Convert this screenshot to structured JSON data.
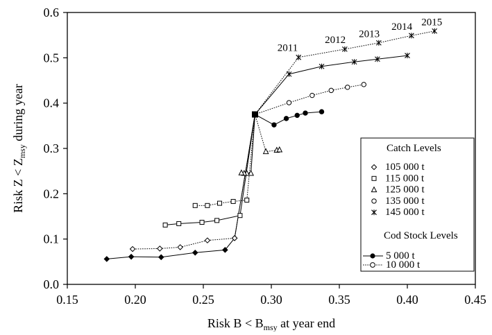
{
  "chart_data": {
    "type": "line",
    "xlabel": "Risk B < B",
    "xlabel_sub": "msy",
    "xlabel_tail": " at year end",
    "ylabel": "Risk Z < Z",
    "ylabel_sub": "msy",
    "ylabel_tail": " during year",
    "xlim": [
      0.15,
      0.45
    ],
    "ylim": [
      0.0,
      0.6
    ],
    "xticks": [
      "0.15",
      "0.20",
      "0.25",
      "0.30",
      "0.35",
      "0.40",
      "0.45"
    ],
    "yticks": [
      "0.0",
      "0.1",
      "0.2",
      "0.3",
      "0.4",
      "0.5",
      "0.6"
    ],
    "grid": false,
    "legend": {
      "position": "right",
      "catch_title": "Catch Levels",
      "catch_entries": [
        {
          "marker": "diamond",
          "label": "105 000 t"
        },
        {
          "marker": "square",
          "label": "115 000 t"
        },
        {
          "marker": "triangle",
          "label": "125 000 t"
        },
        {
          "marker": "circle",
          "label": "135 000 t"
        },
        {
          "marker": "star",
          "label": "145 000 t"
        }
      ],
      "cod_title": "Cod Stock Levels",
      "cod_entries": [
        {
          "style": "solid",
          "label": "5 000 t"
        },
        {
          "style": "dotted",
          "label": "10 000 t"
        }
      ]
    },
    "annotations": [
      {
        "text": "2011",
        "x": 0.312,
        "y": 0.515
      },
      {
        "text": "2012",
        "x": 0.347,
        "y": 0.533
      },
      {
        "text": "2013",
        "x": 0.372,
        "y": 0.546
      },
      {
        "text": "2014",
        "x": 0.396,
        "y": 0.562
      },
      {
        "text": "2015",
        "x": 0.418,
        "y": 0.572
      }
    ],
    "series": [
      {
        "catch": "105 000 t",
        "cod": "5 000 t",
        "marker": "diamond",
        "style": "solid",
        "points": [
          [
            0.288,
            0.375
          ],
          [
            0.273,
            0.102
          ],
          [
            0.266,
            0.076
          ],
          [
            0.244,
            0.07
          ],
          [
            0.219,
            0.06
          ],
          [
            0.197,
            0.061
          ],
          [
            0.179,
            0.056
          ]
        ]
      },
      {
        "catch": "105 000 t",
        "cod": "10 000 t",
        "marker": "diamond",
        "style": "dotted",
        "points": [
          [
            0.288,
            0.375
          ],
          [
            0.273,
            0.102
          ],
          [
            0.253,
            0.097
          ],
          [
            0.233,
            0.082
          ],
          [
            0.218,
            0.079
          ],
          [
            0.198,
            0.078
          ]
        ]
      },
      {
        "catch": "115 000 t",
        "cod": "5 000 t",
        "marker": "square",
        "style": "solid",
        "points": [
          [
            0.288,
            0.375
          ],
          [
            0.277,
            0.152
          ],
          [
            0.26,
            0.141
          ],
          [
            0.249,
            0.137
          ],
          [
            0.232,
            0.134
          ],
          [
            0.222,
            0.131
          ]
        ]
      },
      {
        "catch": "115 000 t",
        "cod": "10 000 t",
        "marker": "square",
        "style": "dotted",
        "points": [
          [
            0.288,
            0.375
          ],
          [
            0.282,
            0.186
          ],
          [
            0.272,
            0.183
          ],
          [
            0.262,
            0.179
          ],
          [
            0.253,
            0.174
          ],
          [
            0.244,
            0.174
          ]
        ]
      },
      {
        "catch": "125 000 t",
        "cod": "5 000 t",
        "marker": "triangle",
        "style": "solid",
        "points": [
          [
            0.288,
            0.375
          ],
          [
            0.285,
            0.245
          ],
          [
            0.282,
            0.245
          ],
          [
            0.28,
            0.245
          ],
          [
            0.278,
            0.246
          ]
        ]
      },
      {
        "catch": "125 000 t",
        "cod": "10 000 t",
        "marker": "triangle",
        "style": "dotted",
        "points": [
          [
            0.288,
            0.375
          ],
          [
            0.296,
            0.293
          ],
          [
            0.304,
            0.296
          ],
          [
            0.306,
            0.297
          ]
        ]
      },
      {
        "catch": "135 000 t",
        "cod": "5 000 t",
        "marker": "circle",
        "style": "solid",
        "points": [
          [
            0.288,
            0.375
          ],
          [
            0.302,
            0.352
          ],
          [
            0.311,
            0.366
          ],
          [
            0.319,
            0.373
          ],
          [
            0.325,
            0.378
          ],
          [
            0.337,
            0.381
          ]
        ]
      },
      {
        "catch": "135 000 t",
        "cod": "10 000 t",
        "marker": "circle",
        "style": "dotted",
        "points": [
          [
            0.288,
            0.375
          ],
          [
            0.313,
            0.401
          ],
          [
            0.33,
            0.417
          ],
          [
            0.344,
            0.428
          ],
          [
            0.356,
            0.435
          ],
          [
            0.368,
            0.441
          ]
        ]
      },
      {
        "catch": "145 000 t",
        "cod": "5 000 t",
        "marker": "star",
        "style": "solid",
        "points": [
          [
            0.288,
            0.375
          ],
          [
            0.313,
            0.464
          ],
          [
            0.337,
            0.481
          ],
          [
            0.361,
            0.491
          ],
          [
            0.378,
            0.497
          ],
          [
            0.4,
            0.505
          ]
        ]
      },
      {
        "catch": "145 000 t",
        "cod": "10 000 t",
        "marker": "star",
        "style": "dotted",
        "points": [
          [
            0.288,
            0.375
          ],
          [
            0.32,
            0.501
          ],
          [
            0.354,
            0.519
          ],
          [
            0.379,
            0.533
          ],
          [
            0.403,
            0.549
          ],
          [
            0.42,
            0.559
          ]
        ]
      }
    ]
  }
}
